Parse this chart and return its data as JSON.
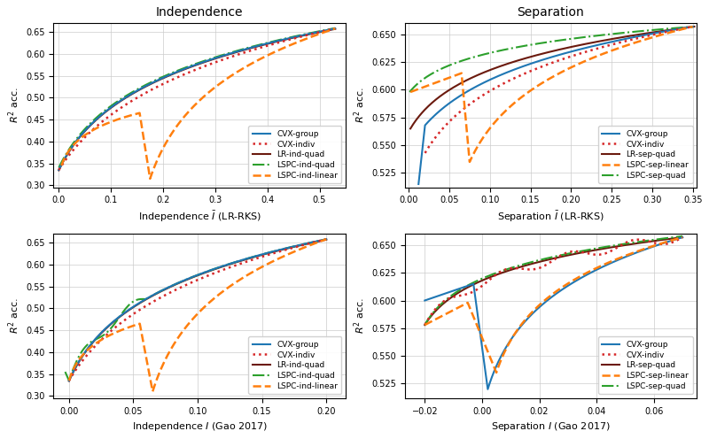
{
  "plots": [
    {
      "title": "Independence",
      "xlabel": "Independence $\\bar{I}$ (LR-RKS)",
      "ylabel": "$R^2$ acc.",
      "xlim": [
        -0.01,
        0.55
      ],
      "ylim": [
        0.295,
        0.67
      ],
      "yticks": [
        0.3,
        0.35,
        0.4,
        0.45,
        0.5,
        0.55,
        0.6,
        0.65
      ],
      "xticks": [
        0.0,
        0.1,
        0.2,
        0.3,
        0.4,
        0.5
      ],
      "legend_loc": "lower right",
      "series": [
        {
          "label": "CVX-group",
          "color": "#1f77b4",
          "ls": "-",
          "lw": 1.5,
          "zorder": 3
        },
        {
          "label": "CVX-indiv",
          "color": "#d62728",
          "ls": ":",
          "lw": 1.8,
          "zorder": 4
        },
        {
          "label": "LR-ind-quad",
          "color": "#6b1a0e",
          "ls": "-",
          "lw": 1.5,
          "zorder": 2
        },
        {
          "label": "LSPC-ind-quad",
          "color": "#2ca02c",
          "ls": "-.",
          "lw": 1.5,
          "zorder": 2
        },
        {
          "label": "LSPC-ind-linear",
          "color": "#ff7f0e",
          "ls": "--",
          "lw": 1.8,
          "zorder": 5
        }
      ]
    },
    {
      "title": "Separation",
      "xlabel": "Separation $\\bar{I}$ (LR-RKS)",
      "ylabel": "$R^2$ acc.",
      "xlim": [
        -0.005,
        0.355
      ],
      "ylim": [
        0.512,
        0.66
      ],
      "yticks": [
        0.525,
        0.55,
        0.575,
        0.6,
        0.625,
        0.65
      ],
      "xticks": [
        0.0,
        0.05,
        0.1,
        0.15,
        0.2,
        0.25,
        0.3,
        0.35
      ],
      "legend_loc": "lower right",
      "series": [
        {
          "label": "CVX-group",
          "color": "#1f77b4",
          "ls": "-",
          "lw": 1.5,
          "zorder": 3
        },
        {
          "label": "CVX-indiv",
          "color": "#d62728",
          "ls": ":",
          "lw": 1.8,
          "zorder": 4
        },
        {
          "label": "LR-sep-quad",
          "color": "#6b1a0e",
          "ls": "-",
          "lw": 1.5,
          "zorder": 2
        },
        {
          "label": "LSPC-sep-linear",
          "color": "#ff7f0e",
          "ls": "--",
          "lw": 1.8,
          "zorder": 5
        },
        {
          "label": "LSPC-sep-quad",
          "color": "#2ca02c",
          "ls": "-.",
          "lw": 1.5,
          "zorder": 2
        }
      ]
    },
    {
      "title": null,
      "xlabel": "Independence $I$ (Gao 2017)",
      "ylabel": "$R^2$ acc.",
      "xlim": [
        -0.012,
        0.215
      ],
      "ylim": [
        0.295,
        0.67
      ],
      "yticks": [
        0.3,
        0.35,
        0.4,
        0.45,
        0.5,
        0.55,
        0.6,
        0.65
      ],
      "xticks": [
        0.0,
        0.05,
        0.1,
        0.15,
        0.2
      ],
      "legend_loc": "lower right",
      "series": [
        {
          "label": "CVX-group",
          "color": "#1f77b4",
          "ls": "-",
          "lw": 1.5,
          "zorder": 3
        },
        {
          "label": "CVX-indiv",
          "color": "#d62728",
          "ls": ":",
          "lw": 1.8,
          "zorder": 4
        },
        {
          "label": "LR-ind-quad",
          "color": "#6b1a0e",
          "ls": "-",
          "lw": 1.5,
          "zorder": 2
        },
        {
          "label": "LSPC-ind-quad",
          "color": "#2ca02c",
          "ls": "-.",
          "lw": 1.5,
          "zorder": 2
        },
        {
          "label": "LSPC-ind-linear",
          "color": "#ff7f0e",
          "ls": "--",
          "lw": 1.8,
          "zorder": 5
        }
      ]
    },
    {
      "title": null,
      "xlabel": "Separation $I$ (Gao 2017)",
      "ylabel": "$R^2$ acc.",
      "xlim": [
        -0.027,
        0.075
      ],
      "ylim": [
        0.512,
        0.66
      ],
      "yticks": [
        0.525,
        0.55,
        0.575,
        0.6,
        0.625,
        0.65
      ],
      "xticks": [
        -0.02,
        0.0,
        0.02,
        0.04,
        0.06
      ],
      "legend_loc": "lower right",
      "series": [
        {
          "label": "CVX-group",
          "color": "#1f77b4",
          "ls": "-",
          "lw": 1.5,
          "zorder": 3
        },
        {
          "label": "CVX-indiv",
          "color": "#d62728",
          "ls": ":",
          "lw": 1.8,
          "zorder": 4
        },
        {
          "label": "LR-sep-quad",
          "color": "#6b1a0e",
          "ls": "-",
          "lw": 1.5,
          "zorder": 2
        },
        {
          "label": "LSPC-sep-linear",
          "color": "#ff7f0e",
          "ls": "--",
          "lw": 1.8,
          "zorder": 5
        },
        {
          "label": "LSPC-sep-quad",
          "color": "#2ca02c",
          "ls": "-.",
          "lw": 1.5,
          "zorder": 2
        }
      ]
    }
  ]
}
